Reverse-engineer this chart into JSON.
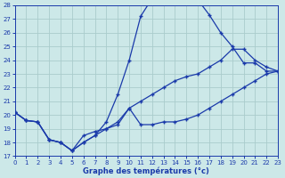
{
  "xlabel": "Graphe des températures (°c)",
  "bg_color": "#cce8e8",
  "grid_color": "#aacccc",
  "line_color": "#1a3aaa",
  "xlim": [
    0,
    23
  ],
  "ylim": [
    17,
    28
  ],
  "xticks": [
    0,
    1,
    2,
    3,
    4,
    5,
    6,
    7,
    8,
    9,
    10,
    11,
    12,
    13,
    14,
    15,
    16,
    17,
    18,
    19,
    20,
    21,
    22,
    23
  ],
  "yticks": [
    17,
    18,
    19,
    20,
    21,
    22,
    23,
    24,
    25,
    26,
    27,
    28
  ],
  "line1_x": [
    0,
    1,
    2,
    3,
    4,
    5,
    6,
    7,
    8,
    9,
    10,
    11,
    12,
    13,
    14,
    15,
    16,
    17,
    18,
    19,
    20,
    21,
    22,
    23
  ],
  "line1_y": [
    20.2,
    19.6,
    19.5,
    18.2,
    18.0,
    17.4,
    18.0,
    18.5,
    19.0,
    19.3,
    20.5,
    19.3,
    19.3,
    19.5,
    19.5,
    19.7,
    20.0,
    20.5,
    21.0,
    21.5,
    22.0,
    22.5,
    23.0,
    23.2
  ],
  "line2_x": [
    0,
    1,
    2,
    3,
    4,
    5,
    6,
    7,
    8,
    9,
    10,
    11,
    12,
    13,
    14,
    15,
    16,
    17,
    18,
    19,
    20,
    21,
    22,
    23
  ],
  "line2_y": [
    20.2,
    19.6,
    19.5,
    18.2,
    18.0,
    17.4,
    18.0,
    18.5,
    19.5,
    21.5,
    24.0,
    27.2,
    28.5,
    28.6,
    28.6,
    28.5,
    28.4,
    27.3,
    26.0,
    25.0,
    23.8,
    23.8,
    23.2,
    23.2
  ],
  "line3_x": [
    0,
    1,
    2,
    3,
    4,
    5,
    6,
    7,
    8,
    9,
    10,
    11,
    12,
    13,
    14,
    15,
    16,
    17,
    18,
    19,
    20,
    21,
    22,
    23
  ],
  "line3_y": [
    20.2,
    19.6,
    19.5,
    18.2,
    18.0,
    17.4,
    18.5,
    18.8,
    19.0,
    19.5,
    20.5,
    21.0,
    21.5,
    22.0,
    22.5,
    22.8,
    23.0,
    23.5,
    24.0,
    24.8,
    24.8,
    24.0,
    23.5,
    23.2
  ]
}
